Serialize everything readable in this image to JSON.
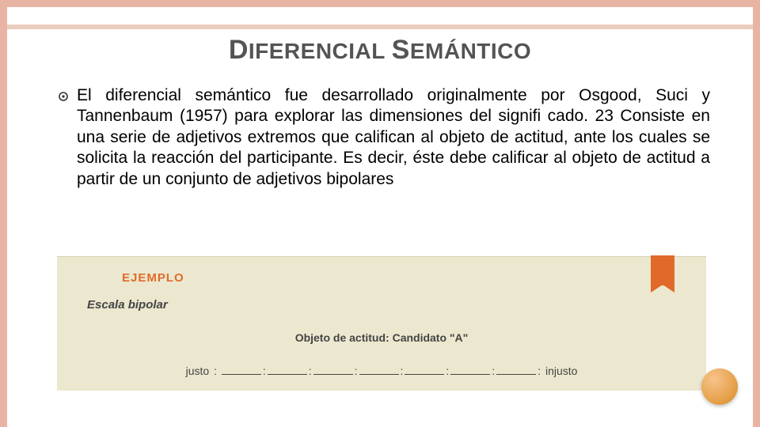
{
  "title": {
    "cap1": "D",
    "part1": "IFERENCIAL",
    "space": " ",
    "cap2": "S",
    "part2": "EMÁNTICO"
  },
  "body": "El diferencial semántico fue desarrollado originalmente por Osgood, Suci y Tannenbaum (1957) para explorar las dimensiones del signifi cado. 23 Consiste en una serie de adjetivos extremos que califican al objeto de actitud, ante los cuales se solicita la reacción del participante. Es decir, éste debe calificar al objeto de actitud a partir de un conjunto de adjetivos bipolares",
  "example": {
    "label": "EJEMPLO",
    "subtitle": "Escala bipolar",
    "object_label": "Objeto de actitud: Candidato \"A\"",
    "left_adj": "justo",
    "right_adj": "injusto",
    "blank_count": 7
  },
  "colors": {
    "frame": "#e8b4a4",
    "title_bar": "#eacdbf",
    "title_text": "#545454",
    "body_text": "#000000",
    "example_bg": "#ece8cf",
    "ribbon": "#e16a2a",
    "example_text": "#444444",
    "dot_light": "#f7c48a",
    "dot_mid": "#e7a24e",
    "dot_dark": "#d68a2e"
  }
}
